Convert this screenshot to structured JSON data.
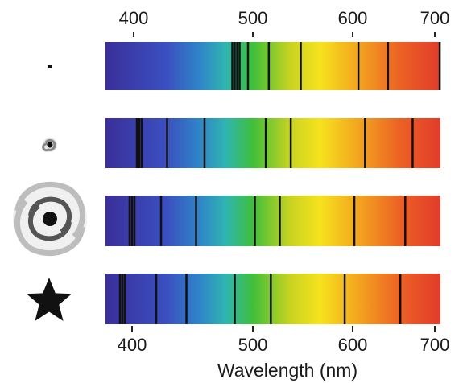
{
  "axis": {
    "title": "Wavelength (nm)",
    "unit": "nm",
    "ticks": [
      400,
      500,
      600,
      700
    ],
    "tick_labels": [
      "400",
      "500",
      "600",
      "700"
    ],
    "range": [
      360,
      730
    ]
  },
  "rows": [
    {
      "object": "dot",
      "icon": "dot-icon",
      "lines": [
        483,
        485,
        487,
        489,
        496,
        516,
        548,
        607,
        643,
        706
      ]
    },
    {
      "object": "small-spiral",
      "icon": "small-spiral-galaxy-icon",
      "lines": [
        404,
        405,
        406,
        408,
        429,
        460,
        513,
        538,
        615,
        673
      ]
    },
    {
      "object": "large-spiral",
      "icon": "large-spiral-galaxy-icon",
      "lines": [
        398,
        400,
        402,
        424,
        453,
        502,
        527,
        602,
        664
      ]
    },
    {
      "object": "star",
      "icon": "star-icon",
      "lines": [
        390,
        392,
        394,
        420,
        445,
        485,
        518,
        592,
        658
      ]
    }
  ],
  "colors": {
    "spectrum": [
      "#3a2f9a",
      "#3b4fc0",
      "#2f84c8",
      "#2fb5b0",
      "#3fbf3a",
      "#c7d321",
      "#f6e21d",
      "#f3a21f",
      "#ec6125",
      "#e23b2a"
    ],
    "line": "#111111"
  }
}
